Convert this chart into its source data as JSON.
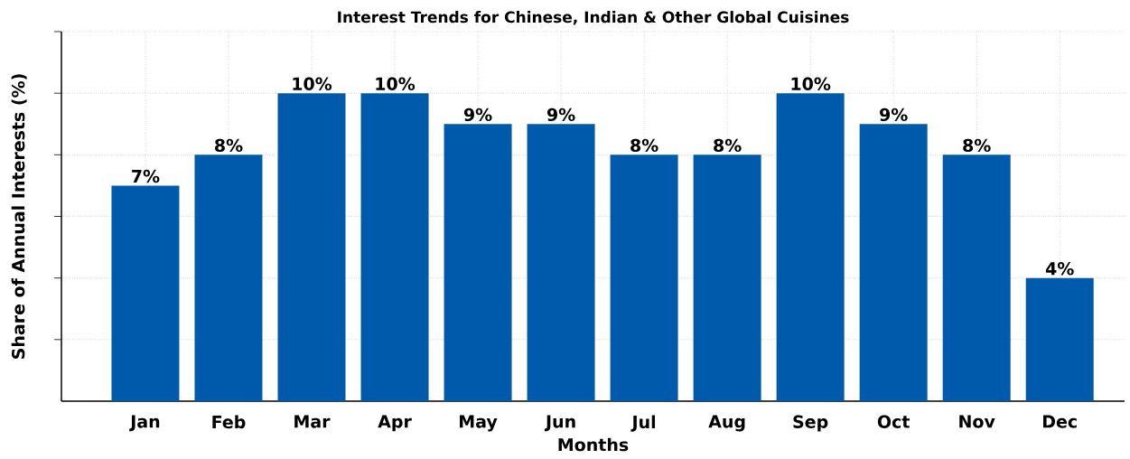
{
  "chart_data": {
    "type": "bar",
    "title": "Interest Trends for Chinese, Indian & Other Global Cuisines",
    "xlabel": "Months",
    "ylabel": "Share of Annual Interests (%)",
    "categories": [
      "Jan",
      "Feb",
      "Mar",
      "Apr",
      "May",
      "Jun",
      "Jul",
      "Aug",
      "Sep",
      "Oct",
      "Nov",
      "Dec"
    ],
    "values": [
      7,
      8,
      10,
      10,
      9,
      9,
      8,
      8,
      10,
      9,
      8,
      4
    ],
    "value_labels": [
      "7%",
      "8%",
      "10%",
      "10%",
      "9%",
      "9%",
      "8%",
      "8%",
      "10%",
      "9%",
      "8%",
      "4%"
    ],
    "color": "#005aab",
    "ylim": [
      0,
      12
    ],
    "yticks": [
      {
        "value": 2,
        "label": null
      },
      {
        "value": 4,
        "label": null
      },
      {
        "value": 6,
        "label": null
      },
      {
        "value": 8,
        "label": null
      },
      {
        "value": 10,
        "label": null
      },
      {
        "value": 12,
        "label": null
      }
    ],
    "tick_labels": "x",
    "grid": true
  }
}
